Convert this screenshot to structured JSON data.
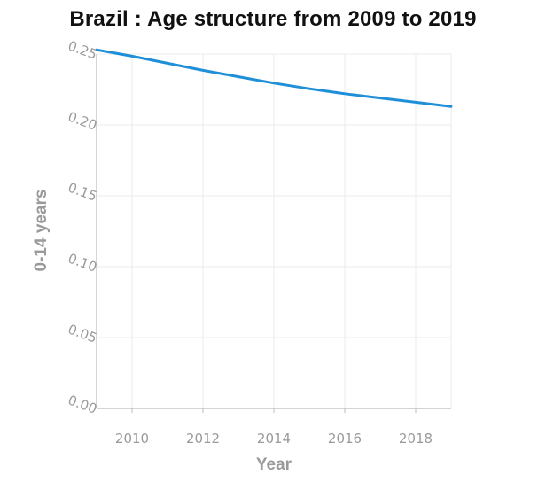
{
  "chart_data": {
    "type": "line",
    "title": "Brazil : Age structure from 2009 to 2019",
    "xlabel": "Year",
    "ylabel": "0-14 years",
    "xlim": [
      2009,
      2019
    ],
    "ylim": [
      0,
      0.25
    ],
    "x_ticks": [
      2010,
      2012,
      2014,
      2016,
      2018
    ],
    "y_ticks": [
      "0.00",
      "0.05",
      "0.10",
      "0.15",
      "0.20",
      "0.25"
    ],
    "grid": true,
    "series": [
      {
        "color": "#1f8fd8",
        "x": [
          2009,
          2010,
          2011,
          2012,
          2013,
          2014,
          2015,
          2016,
          2017,
          2018,
          2019
        ],
        "y": [
          0.253,
          0.2485,
          0.2435,
          0.2385,
          0.234,
          0.2295,
          0.2255,
          0.222,
          0.219,
          0.216,
          0.213
        ]
      }
    ]
  }
}
